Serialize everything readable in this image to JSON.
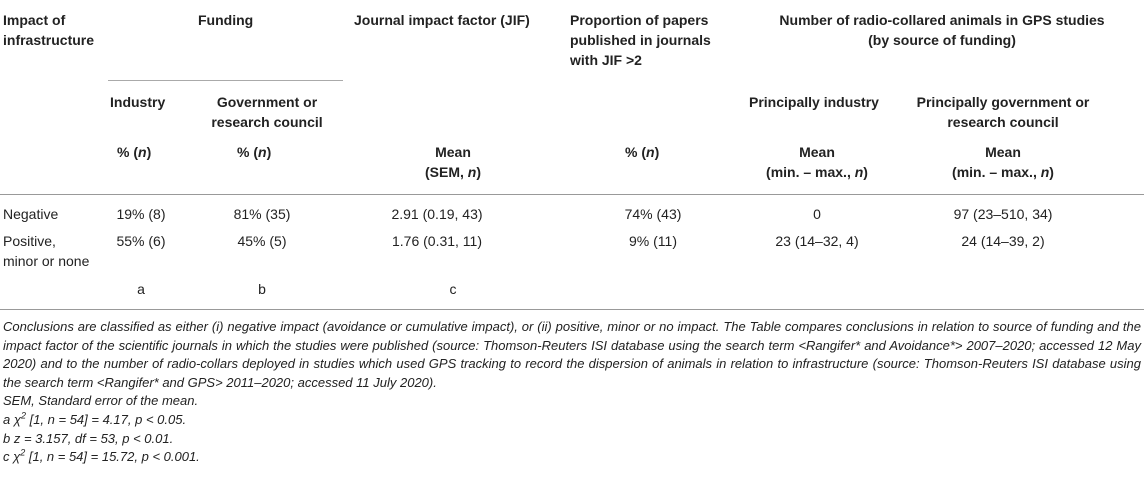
{
  "header": {
    "impact_line1": "Impact of",
    "impact_line2": "infrastructure",
    "funding": "Funding",
    "jif": "Journal impact factor (JIF)",
    "prop_line1": "Proportion of papers",
    "prop_line2": "published in journals",
    "prop_line3": "with JIF >2",
    "radio_line1": "Number of radio-collared animals in GPS studies",
    "radio_line2": "(by source of funding)",
    "industry": "Industry",
    "gov_line1": "Government or",
    "gov_line2": "research council",
    "principally_industry": "Principally industry",
    "principally_gov_line1": "Principally government or",
    "principally_gov_line2": "research council",
    "pct_n_prefix": "% (",
    "n": "n",
    "close": ")",
    "mean": "Mean",
    "sem_prefix": "(SEM, ",
    "minmax_prefix": "(min. – max., "
  },
  "rows": [
    {
      "label_line1": "Negative",
      "label_line2": "",
      "industry": "19% (8)",
      "government": "81% (35)",
      "jif": "2.91 (0.19, 43)",
      "proportion": "74% (43)",
      "radio_industry": "0",
      "radio_government": "97 (23–510, 34)"
    },
    {
      "label_line1": "Positive,",
      "label_line2": "minor or none",
      "industry": "55% (6)",
      "government": "45% (5)",
      "jif": "1.76 (0.31, 11)",
      "proportion": "9% (11)",
      "radio_industry": "23 (14–32, 4)",
      "radio_government": "24 (14–39, 2)"
    }
  ],
  "significance": {
    "a": "a",
    "b": "b",
    "c": "c"
  },
  "footnotes": {
    "conclusions": "Conclusions are classified as either (i) negative impact (avoidance or cumulative impact), or (ii) positive, minor or no impact. The Table compares conclusions in relation to source of funding and the impact factor of the scientific journals in which the studies were published (source: Thomson-Reuters ISI database using the search term <Rangifer* and Avoidance*> 2007–2020; accessed 12 May 2020) and to the number of radio-collars deployed in studies which used GPS tracking to record the dispersion of animals in relation to infrastructure (source: Thomson-Reuters ISI database using the search term <Rangifer* and GPS> 2011–2020; accessed 11 July 2020).",
    "sem": "SEM, Standard error of the mean.",
    "a_prefix": "a χ",
    "a_sup": "2",
    "a_rest": " [1, n = 54] = 4.17, p < 0.05.",
    "b": "b z = 3.157, df = 53, p < 0.01.",
    "c_prefix": "c χ",
    "c_sup": "2",
    "c_rest": " [1, n = 54] = 15.72, p < 0.001."
  }
}
